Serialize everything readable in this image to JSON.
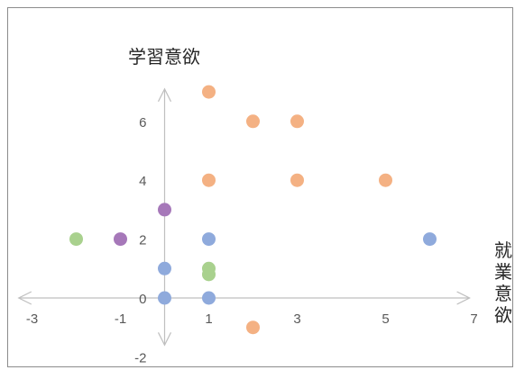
{
  "chart_data": {
    "type": "scatter",
    "title": "",
    "xlabel": "就業意欲",
    "ylabel": "学習意欲",
    "xlim": [
      -3,
      7
    ],
    "ylim": [
      -2,
      7
    ],
    "x_ticks": [
      -3,
      -1,
      1,
      3,
      5,
      7
    ],
    "y_ticks": [
      -2,
      0,
      2,
      4,
      6
    ],
    "grid": false,
    "legend": "none",
    "series": [
      {
        "color": "#f4b183",
        "points": [
          [
            1,
            7
          ],
          [
            2,
            6
          ],
          [
            3,
            6
          ],
          [
            1,
            4
          ],
          [
            3,
            4
          ],
          [
            5,
            4
          ],
          [
            2,
            -1
          ]
        ]
      },
      {
        "color": "#8faadc",
        "points": [
          [
            1,
            2
          ],
          [
            6,
            2
          ],
          [
            0,
            1
          ],
          [
            0,
            0
          ],
          [
            1,
            0
          ]
        ]
      },
      {
        "color": "#a9d18e",
        "points": [
          [
            -2,
            2
          ],
          [
            1,
            1
          ],
          [
            1,
            0.8
          ]
        ]
      },
      {
        "color": "#a678b9",
        "points": [
          [
            -1,
            2
          ],
          [
            0,
            3
          ]
        ]
      }
    ]
  }
}
